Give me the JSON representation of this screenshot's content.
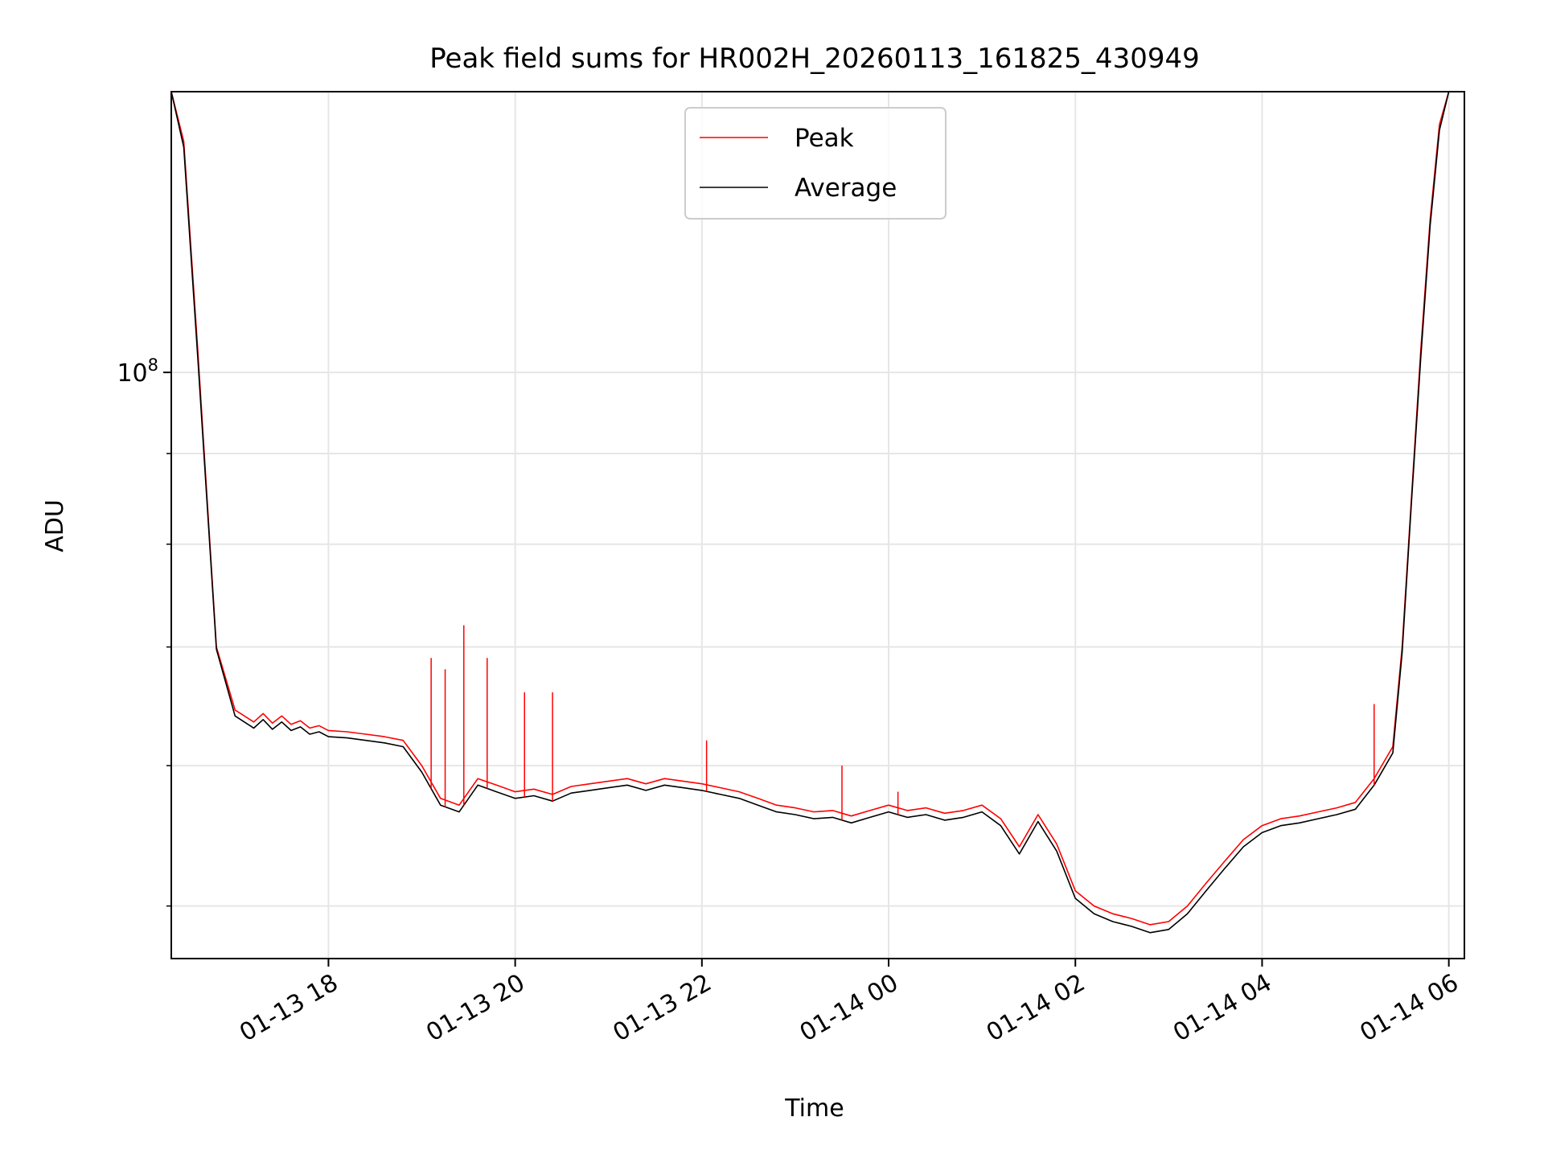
{
  "chart_data": {
    "type": "line",
    "title": "Peak field sums for HR002H_20260113_161825_430949",
    "xlabel": "Time",
    "ylabel": "ADU",
    "y_scale": "log",
    "ylim": [
      46700000.0,
      144000000.0
    ],
    "xlim_hours": [
      16.3167,
      30.1667
    ],
    "x_ticks": [
      {
        "label": "01-13 18",
        "hour": 18
      },
      {
        "label": "01-13 20",
        "hour": 20
      },
      {
        "label": "01-13 22",
        "hour": 22
      },
      {
        "label": "01-14 00",
        "hour": 24
      },
      {
        "label": "01-14 02",
        "hour": 26
      },
      {
        "label": "01-14 04",
        "hour": 28
      },
      {
        "label": "01-14 06",
        "hour": 30
      }
    ],
    "y_major_ticks": [
      {
        "base": "10",
        "exponent": "8",
        "value": 100000000.0
      }
    ],
    "y_minor_ticks": [
      50000000.0,
      60000000.0,
      70000000.0,
      80000000.0,
      90000000.0,
      200000000.0
    ],
    "grid": true,
    "legend_location": "upper center",
    "colors": {
      "peak": "#ff0000",
      "average": "#000000",
      "grid": "#e6e6e6"
    },
    "x_hours": [
      16.3167,
      16.45,
      16.6,
      16.8,
      17.0,
      17.2,
      17.3,
      17.4,
      17.5,
      17.6,
      17.7,
      17.8,
      17.9,
      18.0,
      18.2,
      18.4,
      18.6,
      18.8,
      19.0,
      19.2,
      19.4,
      19.6,
      19.8,
      20.0,
      20.2,
      20.4,
      20.6,
      20.8,
      21.0,
      21.2,
      21.4,
      21.6,
      21.8,
      22.0,
      22.2,
      22.4,
      22.6,
      22.8,
      23.0,
      23.2,
      23.4,
      23.6,
      23.8,
      24.0,
      24.2,
      24.4,
      24.6,
      24.8,
      25.0,
      25.2,
      25.4,
      25.6,
      25.8,
      26.0,
      26.2,
      26.4,
      26.6,
      26.8,
      27.0,
      27.2,
      27.4,
      27.6,
      27.8,
      28.0,
      28.2,
      28.4,
      28.6,
      28.8,
      29.0,
      29.2,
      29.4,
      29.5,
      29.6,
      29.7,
      29.8,
      29.9,
      30.0,
      30.1,
      30.1667
    ],
    "series": [
      {
        "name": "Peak",
        "values": [
          144000000.0,
          135000000.0,
          103000000.0,
          70000000.0,
          64500000.0,
          63500000.0,
          64200000.0,
          63400000.0,
          64000000.0,
          63300000.0,
          63600000.0,
          63000000.0,
          63200000.0,
          62800000.0,
          62700000.0,
          62500000.0,
          62300000.0,
          62000000.0,
          60000000.0,
          57500000.0,
          57000000.0,
          59000000.0,
          58500000.0,
          58000000.0,
          58200000.0,
          57800000.0,
          58400000.0,
          58600000.0,
          58800000.0,
          59000000.0,
          58600000.0,
          59000000.0,
          58800000.0,
          58600000.0,
          58300000.0,
          58000000.0,
          57500000.0,
          57000000.0,
          56800000.0,
          56500000.0,
          56600000.0,
          56200000.0,
          56600000.0,
          57000000.0,
          56600000.0,
          56800000.0,
          56400000.0,
          56600000.0,
          57000000.0,
          56000000.0,
          54000000.0,
          56300000.0,
          54200000.0,
          51000000.0,
          50000000.0,
          49500000.0,
          49200000.0,
          48800000.0,
          49000000.0,
          50000000.0,
          51500000.0,
          53000000.0,
          54500000.0,
          55500000.0,
          56000000.0,
          56200000.0,
          56500000.0,
          56800000.0,
          57200000.0,
          59000000.0,
          61500000.0,
          70000000.0,
          85000000.0,
          103000000.0,
          122000000.0,
          138000000.0,
          144000000.0,
          144000000.0,
          144000000.0
        ]
      },
      {
        "name": "Average",
        "values": [
          144000000.0,
          134000000.0,
          102000000.0,
          69800000.0,
          64000000.0,
          63000000.0,
          63700000.0,
          62900000.0,
          63500000.0,
          62800000.0,
          63100000.0,
          62500000.0,
          62700000.0,
          62300000.0,
          62200000.0,
          62000000.0,
          61800000.0,
          61500000.0,
          59500000.0,
          57000000.0,
          56500000.0,
          58500000.0,
          58000000.0,
          57500000.0,
          57700000.0,
          57300000.0,
          57900000.0,
          58100000.0,
          58300000.0,
          58500000.0,
          58100000.0,
          58500000.0,
          58300000.0,
          58100000.0,
          57800000.0,
          57500000.0,
          57000000.0,
          56500000.0,
          56300000.0,
          56000000.0,
          56100000.0,
          55700000.0,
          56100000.0,
          56500000.0,
          56100000.0,
          56300000.0,
          55900000.0,
          56100000.0,
          56500000.0,
          55500000.0,
          53500000.0,
          55800000.0,
          53700000.0,
          50500000.0,
          49500000.0,
          49000000.0,
          48700000.0,
          48300000.0,
          48500000.0,
          49500000.0,
          51000000.0,
          52500000.0,
          54000000.0,
          55000000.0,
          55500000.0,
          55700000.0,
          56000000.0,
          56300000.0,
          56700000.0,
          58500000.0,
          61000000.0,
          69500000.0,
          84500000.0,
          102000000.0,
          121000000.0,
          137000000.0,
          144000000.0,
          144000000.0,
          144000000.0
        ]
      }
    ],
    "spikes": [
      {
        "hour": 19.1,
        "peak": 69000000.0
      },
      {
        "hour": 19.25,
        "peak": 68000000.0
      },
      {
        "hour": 19.45,
        "peak": 72000000.0
      },
      {
        "hour": 19.7,
        "peak": 69000000.0
      },
      {
        "hour": 20.1,
        "peak": 66000000.0
      },
      {
        "hour": 20.4,
        "peak": 66000000.0
      },
      {
        "hour": 22.05,
        "peak": 62000000.0
      },
      {
        "hour": 23.5,
        "peak": 60000000.0
      },
      {
        "hour": 24.1,
        "peak": 58000000.0
      },
      {
        "hour": 29.2,
        "peak": 65000000.0
      }
    ],
    "legend": [
      {
        "label": "Peak",
        "color": "#ff0000"
      },
      {
        "label": "Average",
        "color": "#000000"
      }
    ]
  }
}
